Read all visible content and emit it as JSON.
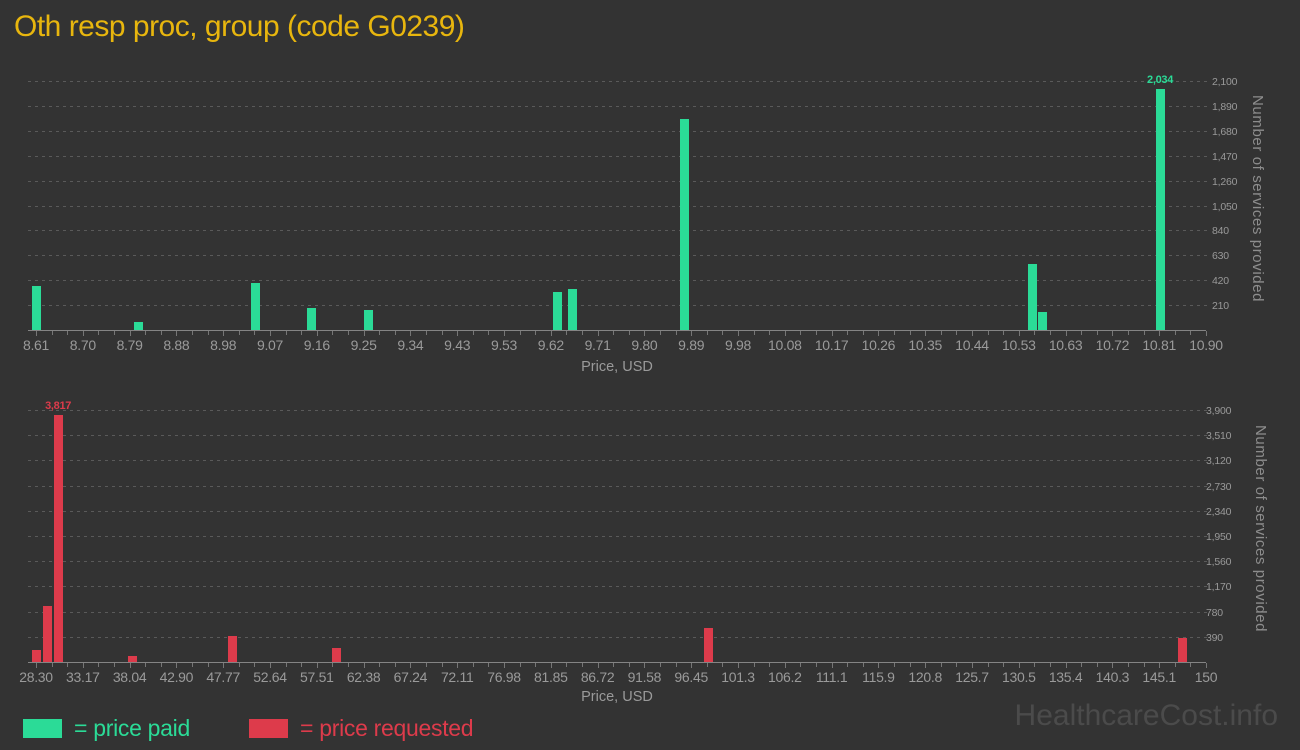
{
  "title": "Oth resp proc, group (code G0239)",
  "watermark": "HealthcareCost.info",
  "colors": {
    "background": "#333333",
    "title": "#e8b60e",
    "price_paid": "#2bdb97",
    "price_requested": "#dd3b4b",
    "gridline": "#5a5a5a",
    "axis_line": "#848484",
    "tick_label": "#9a9a9a",
    "axis_title": "#8d8d8d",
    "watermark": "#4b4b4b"
  },
  "legend": {
    "items": [
      {
        "label": "= price paid",
        "color_key": "price_paid"
      },
      {
        "label": "= price requested",
        "color_key": "price_requested"
      }
    ]
  },
  "chart_data": [
    {
      "type": "bar",
      "series": "price paid",
      "color": "#2bdb97",
      "xlabel": "Price, USD",
      "ylabel": "Number of services provided",
      "x_range": [
        8.61,
        10.9
      ],
      "y_range": [
        0,
        2100
      ],
      "y_tick_step": 210,
      "grid": "dashed-horizontal",
      "legend_position": "bottom-left",
      "x_ticks": [
        "8.61",
        "8.70",
        "8.79",
        "8.88",
        "8.98",
        "9.07",
        "9.16",
        "9.25",
        "9.34",
        "9.43",
        "9.53",
        "9.62",
        "9.71",
        "9.80",
        "9.89",
        "9.98",
        "10.08",
        "10.17",
        "10.26",
        "10.35",
        "10.44",
        "10.53",
        "10.63",
        "10.72",
        "10.81",
        "10.90"
      ],
      "y_ticks": [
        "210",
        "420",
        "630",
        "840",
        "1,050",
        "1,260",
        "1,470",
        "1,680",
        "1,890",
        "2,100"
      ],
      "points": [
        {
          "x": 8.61,
          "y": 375
        },
        {
          "x": 8.81,
          "y": 70
        },
        {
          "x": 9.04,
          "y": 395
        },
        {
          "x": 9.15,
          "y": 185
        },
        {
          "x": 9.26,
          "y": 170
        },
        {
          "x": 9.63,
          "y": 320
        },
        {
          "x": 9.66,
          "y": 345
        },
        {
          "x": 9.88,
          "y": 1780
        },
        {
          "x": 10.56,
          "y": 555
        },
        {
          "x": 10.58,
          "y": 155
        },
        {
          "x": 10.81,
          "y": 2034,
          "label": "2,034"
        }
      ]
    },
    {
      "type": "bar",
      "series": "price requested",
      "color": "#dd3b4b",
      "xlabel": "Price, USD",
      "ylabel": "Number of services provided",
      "x_range": [
        28.3,
        150
      ],
      "y_range": [
        0,
        3900
      ],
      "y_tick_step": 390,
      "grid": "dashed-horizontal",
      "legend_position": "bottom-left",
      "x_ticks": [
        "28.30",
        "33.17",
        "38.04",
        "42.90",
        "47.77",
        "52.64",
        "57.51",
        "62.38",
        "67.24",
        "72.11",
        "76.98",
        "81.85",
        "86.72",
        "91.58",
        "96.45",
        "101.3",
        "106.2",
        "111.1",
        "115.9",
        "120.8",
        "125.7",
        "130.5",
        "135.4",
        "140.3",
        "145.1",
        "150"
      ],
      "y_ticks": [
        "390",
        "780",
        "1,170",
        "1,560",
        "1,950",
        "2,340",
        "2,730",
        "3,120",
        "3,510",
        "3,900"
      ],
      "points": [
        {
          "x": 28.3,
          "y": 190
        },
        {
          "x": 29.5,
          "y": 870
        },
        {
          "x": 30.6,
          "y": 3817,
          "label": "3,817"
        },
        {
          "x": 38.3,
          "y": 90
        },
        {
          "x": 48.7,
          "y": 410
        },
        {
          "x": 59.6,
          "y": 210
        },
        {
          "x": 98.2,
          "y": 520
        },
        {
          "x": 147.6,
          "y": 375
        }
      ]
    }
  ]
}
